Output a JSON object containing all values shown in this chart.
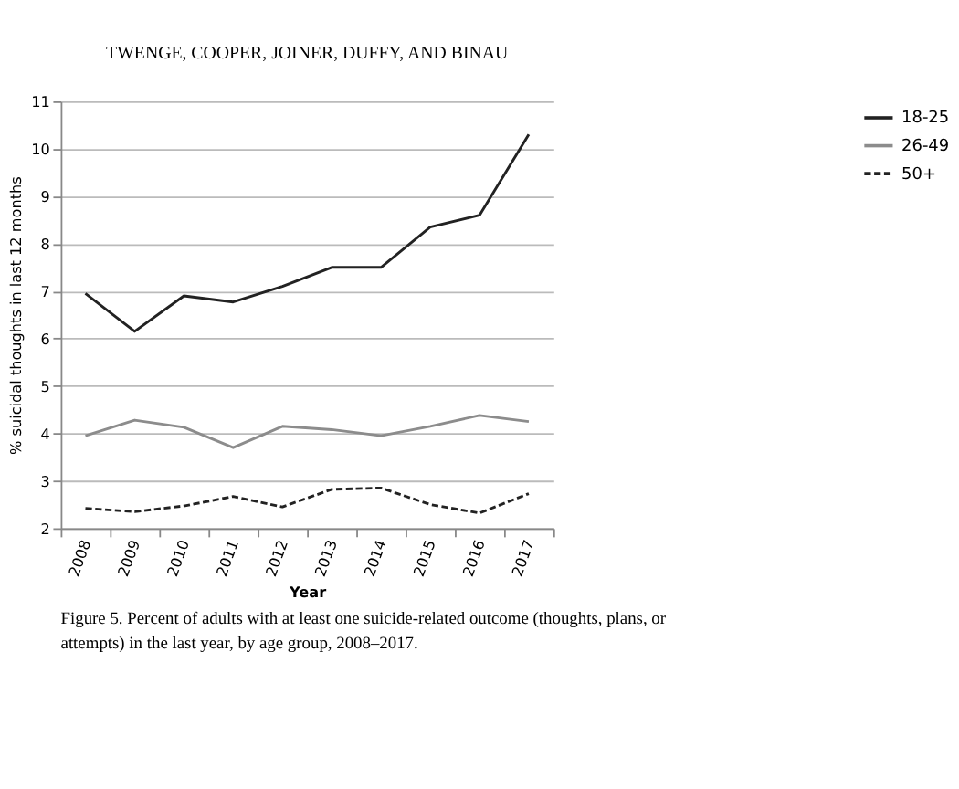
{
  "chart_data": {
    "type": "line",
    "title": "TWENGE, COOPER, JOINER, DUFFY, AND BINAU",
    "xlabel": "Year",
    "ylabel": "% suicidal thoughts in last 12 months",
    "categories": [
      "2008",
      "2009",
      "2010",
      "2011",
      "2012",
      "2013",
      "2014",
      "2015",
      "2016",
      "2017"
    ],
    "series": [
      {
        "name": "18-25",
        "color": "#222222",
        "line_style": "solid",
        "values": [
          6.95,
          6.15,
          6.9,
          6.77,
          7.1,
          7.5,
          7.5,
          8.35,
          8.6,
          10.3
        ]
      },
      {
        "name": "26-49",
        "color": "#8c8c8c",
        "line_style": "solid",
        "values": [
          3.95,
          4.28,
          4.13,
          3.7,
          4.15,
          4.08,
          3.95,
          4.15,
          4.38,
          4.25
        ]
      },
      {
        "name": "50+",
        "color": "#222222",
        "line_style": "dashed",
        "values": [
          2.42,
          2.35,
          2.47,
          2.67,
          2.45,
          2.82,
          2.85,
          2.5,
          2.32,
          2.73
        ]
      }
    ],
    "ylim": [
      2,
      11
    ],
    "yticks": [
      2,
      3,
      4,
      5,
      6,
      7,
      8,
      9,
      10,
      11
    ],
    "grid": "y",
    "legend": "right",
    "marker": "none",
    "annotations": [
      "Figure 5.    Percent of adults with at least one suicide-related outcome (thoughts, plans, or attempts) in the last year, by age group, 2008–2017."
    ]
  }
}
